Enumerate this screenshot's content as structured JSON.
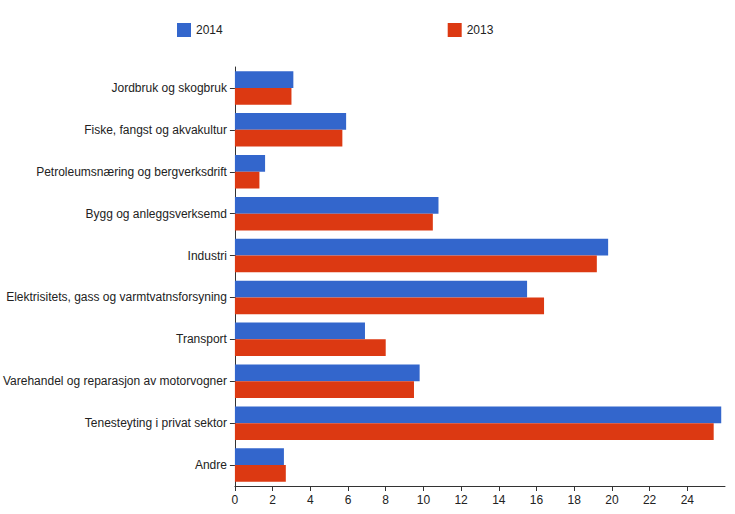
{
  "chart_data": {
    "type": "bar",
    "orientation": "horizontal",
    "categories": [
      "Jordbruk og skogbruk",
      "Fiske, fangst og akvakultur",
      "Petroleumsnæring og bergverksdrift",
      "Bygg og anleggsverksemd",
      "Industri",
      "Elektrisitets, gass og varmtvatnsforsyning",
      "Transport",
      "Varehandel og reparasjon av motorvogner",
      "Tenesteyting i privat sektor",
      "Andre"
    ],
    "series": [
      {
        "name": "2014",
        "color": "#3366cc",
        "values": [
          3.1,
          5.9,
          1.6,
          10.8,
          19.8,
          15.5,
          6.9,
          9.8,
          25.8,
          2.6
        ]
      },
      {
        "name": "2013",
        "color": "#dc3912",
        "values": [
          3.0,
          5.7,
          1.3,
          10.5,
          19.2,
          16.4,
          8.0,
          9.5,
          25.4,
          2.7
        ]
      }
    ],
    "xlim": [
      0,
      26
    ],
    "xticks": [
      0,
      2,
      4,
      6,
      8,
      10,
      12,
      14,
      16,
      18,
      20,
      22,
      24
    ],
    "grid": false,
    "legend": "top"
  }
}
